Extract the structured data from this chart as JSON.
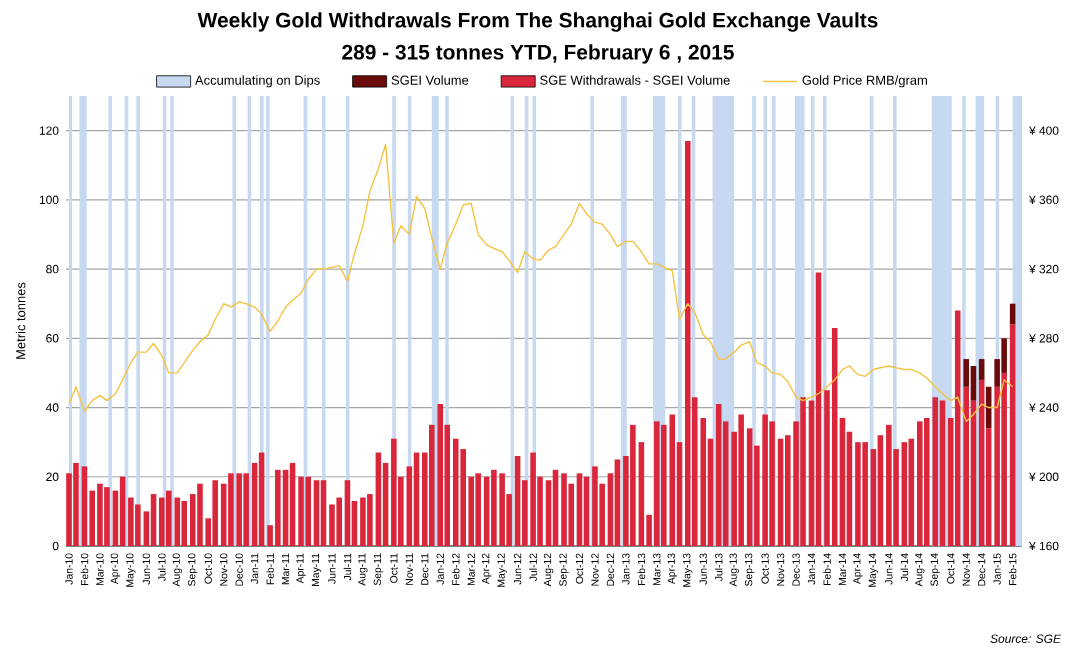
{
  "chart_data": {
    "type": "bar",
    "title": "Weekly Gold Withdrawals From The Shanghai Gold Exchange Vaults",
    "subtitle": "289 - 315 tonnes YTD, February 6 , 2015",
    "ylabel": "Metric tonnes",
    "annotations": [
      "Source: SGE"
    ],
    "stacked": true,
    "grid": "y",
    "legend": "top",
    "x": [
      "2010-01-01",
      "2010-01-15",
      "2010-02-01",
      "2010-02-15",
      "2010-03-01",
      "2010-03-15",
      "2010-04-01",
      "2010-04-15",
      "2010-05-01",
      "2010-05-15",
      "2010-06-01",
      "2010-06-15",
      "2010-07-01",
      "2010-07-15",
      "2010-08-01",
      "2010-08-15",
      "2010-09-01",
      "2010-09-15",
      "2010-10-01",
      "2010-10-15",
      "2010-11-01",
      "2010-11-15",
      "2010-12-01",
      "2010-12-15",
      "2011-01-01",
      "2011-01-15",
      "2011-02-01",
      "2011-02-15",
      "2011-03-01",
      "2011-03-15",
      "2011-04-01",
      "2011-04-15",
      "2011-05-01",
      "2011-05-15",
      "2011-06-01",
      "2011-06-15",
      "2011-07-01",
      "2011-07-15",
      "2011-08-01",
      "2011-08-15",
      "2011-09-01",
      "2011-09-15",
      "2011-10-01",
      "2011-10-15",
      "2011-11-01",
      "2011-11-15",
      "2011-12-01",
      "2011-12-15",
      "2012-01-01",
      "2012-01-15",
      "2012-02-01",
      "2012-02-15",
      "2012-03-01",
      "2012-03-15",
      "2012-04-01",
      "2012-04-15",
      "2012-05-01",
      "2012-05-15",
      "2012-06-01",
      "2012-06-15",
      "2012-07-01",
      "2012-07-15",
      "2012-08-01",
      "2012-08-15",
      "2012-09-01",
      "2012-09-15",
      "2012-10-01",
      "2012-10-15",
      "2012-11-01",
      "2012-11-15",
      "2012-12-01",
      "2012-12-15",
      "2013-01-01",
      "2013-01-15",
      "2013-02-01",
      "2013-02-15",
      "2013-03-01",
      "2013-03-15",
      "2013-04-01",
      "2013-04-15",
      "2013-05-01",
      "2013-05-15",
      "2013-06-01",
      "2013-06-15",
      "2013-07-01",
      "2013-07-15",
      "2013-08-01",
      "2013-08-15",
      "2013-09-01",
      "2013-09-15",
      "2013-10-01",
      "2013-10-15",
      "2013-11-01",
      "2013-11-15",
      "2013-12-01",
      "2013-12-15",
      "2014-01-01",
      "2014-01-15",
      "2014-02-01",
      "2014-02-15",
      "2014-03-01",
      "2014-03-15",
      "2014-04-01",
      "2014-04-15",
      "2014-05-01",
      "2014-05-15",
      "2014-06-01",
      "2014-06-15",
      "2014-07-01",
      "2014-07-15",
      "2014-08-01",
      "2014-08-15",
      "2014-09-01",
      "2014-09-15",
      "2014-10-01",
      "2014-10-15",
      "2014-11-01",
      "2014-11-15",
      "2014-12-01",
      "2014-12-15",
      "2015-01-01",
      "2015-01-15",
      "2015-02-01"
    ],
    "xlim": [
      "2009-12-26",
      "2015-02-18"
    ],
    "xticks": [
      {
        "value": "2010-01-01",
        "label": "Jan-10"
      },
      {
        "value": "2010-02-01",
        "label": "Feb-10"
      },
      {
        "value": "2010-03-01",
        "label": "Mar-10"
      },
      {
        "value": "2010-04-01",
        "label": "Apr-10"
      },
      {
        "value": "2010-05-01",
        "label": "May-10"
      },
      {
        "value": "2010-06-01",
        "label": "Jun-10"
      },
      {
        "value": "2010-07-01",
        "label": "Jul-10"
      },
      {
        "value": "2010-08-01",
        "label": "Aug-10"
      },
      {
        "value": "2010-09-01",
        "label": "Sep-10"
      },
      {
        "value": "2010-10-01",
        "label": "Oct-10"
      },
      {
        "value": "2010-11-01",
        "label": "Nov-10"
      },
      {
        "value": "2010-12-01",
        "label": "Dec-10"
      },
      {
        "value": "2011-01-01",
        "label": "Jan-11"
      },
      {
        "value": "2011-02-01",
        "label": "Feb-11"
      },
      {
        "value": "2011-03-01",
        "label": "Mar-11"
      },
      {
        "value": "2011-04-01",
        "label": "Apr-11"
      },
      {
        "value": "2011-05-01",
        "label": "May-11"
      },
      {
        "value": "2011-06-01",
        "label": "Jun-11"
      },
      {
        "value": "2011-07-01",
        "label": "Jul-11"
      },
      {
        "value": "2011-08-01",
        "label": "Aug-11"
      },
      {
        "value": "2011-09-01",
        "label": "Sep-11"
      },
      {
        "value": "2011-10-01",
        "label": "Oct-11"
      },
      {
        "value": "2011-11-01",
        "label": "Nov-11"
      },
      {
        "value": "2011-12-01",
        "label": "Dec-11"
      },
      {
        "value": "2012-01-01",
        "label": "Jan-12"
      },
      {
        "value": "2012-02-01",
        "label": "Feb-12"
      },
      {
        "value": "2012-03-01",
        "label": "Mar-12"
      },
      {
        "value": "2012-04-01",
        "label": "Apr-12"
      },
      {
        "value": "2012-05-01",
        "label": "May-12"
      },
      {
        "value": "2012-06-01",
        "label": "Jun-12"
      },
      {
        "value": "2012-07-01",
        "label": "Jul-12"
      },
      {
        "value": "2012-08-01",
        "label": "Aug-12"
      },
      {
        "value": "2012-09-01",
        "label": "Sep-12"
      },
      {
        "value": "2012-10-01",
        "label": "Oct-12"
      },
      {
        "value": "2012-11-01",
        "label": "Nov-12"
      },
      {
        "value": "2012-12-01",
        "label": "Dec-12"
      },
      {
        "value": "2013-01-01",
        "label": "Jan-13"
      },
      {
        "value": "2013-02-01",
        "label": "Feb-13"
      },
      {
        "value": "2013-03-01",
        "label": "Mar-13"
      },
      {
        "value": "2013-04-01",
        "label": "Apr-13"
      },
      {
        "value": "2013-05-01",
        "label": "May-13"
      },
      {
        "value": "2013-06-01",
        "label": "Jun-13"
      },
      {
        "value": "2013-07-01",
        "label": "Jul-13"
      },
      {
        "value": "2013-08-01",
        "label": "Aug-13"
      },
      {
        "value": "2013-09-01",
        "label": "Sep-13"
      },
      {
        "value": "2013-10-01",
        "label": "Oct-13"
      },
      {
        "value": "2013-11-01",
        "label": "Nov-13"
      },
      {
        "value": "2013-12-01",
        "label": "Dec-13"
      },
      {
        "value": "2014-01-01",
        "label": "Jan-14"
      },
      {
        "value": "2014-02-01",
        "label": "Feb-14"
      },
      {
        "value": "2014-03-01",
        "label": "Mar-14"
      },
      {
        "value": "2014-04-01",
        "label": "Apr-14"
      },
      {
        "value": "2014-05-01",
        "label": "May-14"
      },
      {
        "value": "2014-06-01",
        "label": "Jun-14"
      },
      {
        "value": "2014-07-01",
        "label": "Jul-14"
      },
      {
        "value": "2014-08-01",
        "label": "Aug-14"
      },
      {
        "value": "2014-09-01",
        "label": "Sep-14"
      },
      {
        "value": "2014-10-01",
        "label": "Oct-14"
      },
      {
        "value": "2014-11-01",
        "label": "Nov-14"
      },
      {
        "value": "2014-12-01",
        "label": "Dec-14"
      },
      {
        "value": "2015-01-01",
        "label": "Jan-15"
      },
      {
        "value": "2015-02-01",
        "label": "Feb-15"
      }
    ],
    "ylim": [
      0,
      130
    ],
    "yticks": [
      0,
      20,
      40,
      60,
      80,
      100,
      120
    ],
    "y2lim": [
      160,
      420
    ],
    "y2ticks": [
      {
        "value": 160,
        "label": "¥ 160"
      },
      {
        "value": 200,
        "label": "¥ 200"
      },
      {
        "value": 240,
        "label": "¥ 240"
      },
      {
        "value": 280,
        "label": "¥ 280"
      },
      {
        "value": 320,
        "label": "¥ 320"
      },
      {
        "value": 360,
        "label": "¥ 360"
      },
      {
        "value": 400,
        "label": "¥ 400"
      }
    ],
    "series": [
      {
        "name": "SGE Withdrawals - SGEI Volume",
        "color": "#d9263a",
        "values": [
          21,
          24,
          23,
          16,
          18,
          17,
          16,
          20,
          14,
          12,
          10,
          15,
          14,
          16,
          14,
          13,
          15,
          18,
          8,
          19,
          18,
          21,
          21,
          21,
          24,
          27,
          6,
          22,
          22,
          24,
          20,
          20,
          19,
          19,
          12,
          14,
          19,
          13,
          14,
          15,
          27,
          24,
          31,
          20,
          23,
          27,
          27,
          35,
          41,
          35,
          31,
          28,
          20,
          21,
          20,
          22,
          21,
          15,
          26,
          19,
          27,
          20,
          19,
          22,
          21,
          18,
          21,
          20,
          23,
          18,
          21,
          25,
          26,
          35,
          30,
          9,
          36,
          35,
          38,
          30,
          117,
          43,
          37,
          31,
          41,
          36,
          33,
          38,
          34,
          29,
          38,
          36,
          31,
          32,
          36,
          43,
          42,
          79,
          45,
          63,
          37,
          33,
          30,
          30,
          28,
          32,
          35,
          28,
          30,
          31,
          36,
          37,
          43,
          42,
          37,
          68,
          46,
          42,
          48,
          34,
          46,
          50,
          64
        ]
      },
      {
        "name": "SGEI Volume",
        "color": "#6b0a0a",
        "values": [
          null,
          null,
          null,
          null,
          null,
          null,
          null,
          null,
          null,
          null,
          null,
          null,
          null,
          null,
          null,
          null,
          null,
          null,
          null,
          null,
          null,
          null,
          null,
          null,
          null,
          null,
          null,
          null,
          null,
          null,
          null,
          null,
          null,
          null,
          null,
          null,
          null,
          null,
          null,
          null,
          null,
          null,
          null,
          null,
          null,
          null,
          null,
          null,
          null,
          null,
          null,
          null,
          null,
          null,
          null,
          null,
          null,
          null,
          null,
          null,
          null,
          null,
          null,
          null,
          null,
          null,
          null,
          null,
          null,
          null,
          null,
          null,
          null,
          null,
          null,
          null,
          null,
          null,
          null,
          null,
          null,
          null,
          null,
          null,
          null,
          null,
          null,
          null,
          null,
          null,
          null,
          null,
          null,
          null,
          null,
          null,
          null,
          null,
          null,
          null,
          null,
          null,
          null,
          null,
          null,
          null,
          null,
          null,
          null,
          null,
          null,
          null,
          null,
          null,
          null,
          null,
          8,
          10,
          6,
          12,
          8,
          10,
          6
        ]
      },
      {
        "name": "Gold Price RMB/gram",
        "type": "line",
        "axis": "y2",
        "color": "#f5c342",
        "values": [
          242,
          252,
          238,
          244,
          247,
          244,
          248,
          256,
          266,
          272,
          272,
          277,
          270,
          260,
          260,
          266,
          273,
          278,
          282,
          291,
          300,
          298,
          301,
          300,
          298,
          294,
          284,
          290,
          298,
          302,
          306,
          314,
          320,
          320,
          321,
          322,
          313,
          329,
          345,
          365,
          378,
          392,
          335,
          345,
          340,
          362,
          355,
          338,
          320,
          335,
          346,
          357,
          358,
          340,
          334,
          332,
          330,
          325,
          318,
          330,
          326,
          325,
          331,
          333,
          340,
          346,
          358,
          352,
          347,
          346,
          340,
          333,
          336,
          336,
          330,
          323,
          323,
          321,
          319,
          291,
          300,
          295,
          282,
          278,
          268,
          268,
          272,
          276,
          278,
          266,
          264,
          260,
          259,
          255,
          246,
          244,
          246,
          248,
          252,
          256,
          262,
          264,
          259,
          258,
          262,
          263,
          264,
          263,
          262,
          262,
          260,
          257,
          252,
          248,
          244,
          246,
          232,
          236,
          242,
          240,
          240,
          256,
          252
        ]
      }
    ],
    "bands": [
      {
        "axis": "x",
        "from": "2010-01-01",
        "to": "2010-01-07",
        "label": "Accumulating on Dips",
        "color": "#c6d9f0"
      },
      {
        "axis": "x",
        "from": "2010-01-22",
        "to": "2010-02-05",
        "color": "#c6d9f0"
      },
      {
        "axis": "x",
        "from": "2010-03-18",
        "to": "2010-03-25",
        "color": "#c6d9f0"
      },
      {
        "axis": "x",
        "from": "2010-04-19",
        "to": "2010-04-26",
        "color": "#c6d9f0"
      },
      {
        "axis": "x",
        "from": "2010-05-12",
        "to": "2010-05-19",
        "color": "#c6d9f0"
      },
      {
        "axis": "x",
        "from": "2010-07-03",
        "to": "2010-07-10",
        "color": "#c6d9f0"
      },
      {
        "axis": "x",
        "from": "2010-07-18",
        "to": "2010-07-25",
        "color": "#c6d9f0"
      },
      {
        "axis": "x",
        "from": "2010-11-18",
        "to": "2010-11-25",
        "color": "#c6d9f0"
      },
      {
        "axis": "x",
        "from": "2010-12-18",
        "to": "2010-12-25",
        "color": "#c6d9f0"
      },
      {
        "axis": "x",
        "from": "2011-01-12",
        "to": "2011-01-19",
        "color": "#c6d9f0"
      },
      {
        "axis": "x",
        "from": "2011-01-24",
        "to": "2011-01-31",
        "color": "#c6d9f0"
      },
      {
        "axis": "x",
        "from": "2011-04-06",
        "to": "2011-04-13",
        "color": "#c6d9f0"
      },
      {
        "axis": "x",
        "from": "2011-05-12",
        "to": "2011-05-19",
        "color": "#c6d9f0"
      },
      {
        "axis": "x",
        "from": "2011-06-28",
        "to": "2011-07-05",
        "color": "#c6d9f0"
      },
      {
        "axis": "x",
        "from": "2011-09-28",
        "to": "2011-10-05",
        "color": "#c6d9f0"
      },
      {
        "axis": "x",
        "from": "2011-10-29",
        "to": "2011-11-05",
        "color": "#c6d9f0"
      },
      {
        "axis": "x",
        "from": "2011-12-15",
        "to": "2011-12-29",
        "color": "#c6d9f0"
      },
      {
        "axis": "x",
        "from": "2012-01-11",
        "to": "2012-01-18",
        "color": "#c6d9f0"
      },
      {
        "axis": "x",
        "from": "2012-05-18",
        "to": "2012-05-25",
        "color": "#c6d9f0"
      },
      {
        "axis": "x",
        "from": "2012-06-15",
        "to": "2012-06-22",
        "color": "#c6d9f0"
      },
      {
        "axis": "x",
        "from": "2012-06-30",
        "to": "2012-07-07",
        "color": "#c6d9f0"
      },
      {
        "axis": "x",
        "from": "2012-10-23",
        "to": "2012-10-30",
        "color": "#c6d9f0"
      },
      {
        "axis": "x",
        "from": "2012-12-22",
        "to": "2013-01-03",
        "color": "#c6d9f0"
      },
      {
        "axis": "x",
        "from": "2013-02-22",
        "to": "2013-03-18",
        "color": "#c6d9f0"
      },
      {
        "axis": "x",
        "from": "2013-04-12",
        "to": "2013-04-19",
        "color": "#c6d9f0"
      },
      {
        "axis": "x",
        "from": "2013-05-09",
        "to": "2013-05-16",
        "color": "#c6d9f0"
      },
      {
        "axis": "x",
        "from": "2013-06-19",
        "to": "2013-08-01",
        "color": "#c6d9f0"
      },
      {
        "axis": "x",
        "from": "2013-09-06",
        "to": "2013-09-13",
        "color": "#c6d9f0"
      },
      {
        "axis": "x",
        "from": "2013-09-28",
        "to": "2013-10-05",
        "color": "#c6d9f0"
      },
      {
        "axis": "x",
        "from": "2013-10-15",
        "to": "2013-10-22",
        "color": "#c6d9f0"
      },
      {
        "axis": "x",
        "from": "2013-11-29",
        "to": "2013-12-18",
        "color": "#c6d9f0"
      },
      {
        "axis": "x",
        "from": "2013-12-31",
        "to": "2014-01-07",
        "color": "#c6d9f0"
      },
      {
        "axis": "x",
        "from": "2014-01-24",
        "to": "2014-01-31",
        "color": "#c6d9f0"
      },
      {
        "axis": "x",
        "from": "2014-04-24",
        "to": "2014-05-01",
        "color": "#c6d9f0"
      },
      {
        "axis": "x",
        "from": "2014-06-09",
        "to": "2014-06-16",
        "color": "#c6d9f0"
      },
      {
        "axis": "x",
        "from": "2014-08-25",
        "to": "2014-10-03",
        "color": "#c6d9f0"
      },
      {
        "axis": "x",
        "from": "2014-10-24",
        "to": "2014-10-31",
        "color": "#c6d9f0"
      },
      {
        "axis": "x",
        "from": "2014-11-19",
        "to": "2014-12-06",
        "color": "#c6d9f0"
      },
      {
        "axis": "x",
        "from": "2014-12-29",
        "to": "2015-01-05",
        "color": "#c6d9f0"
      },
      {
        "axis": "x",
        "from": "2015-02-01",
        "to": "2015-02-18",
        "color": "#c6d9f0"
      }
    ]
  }
}
